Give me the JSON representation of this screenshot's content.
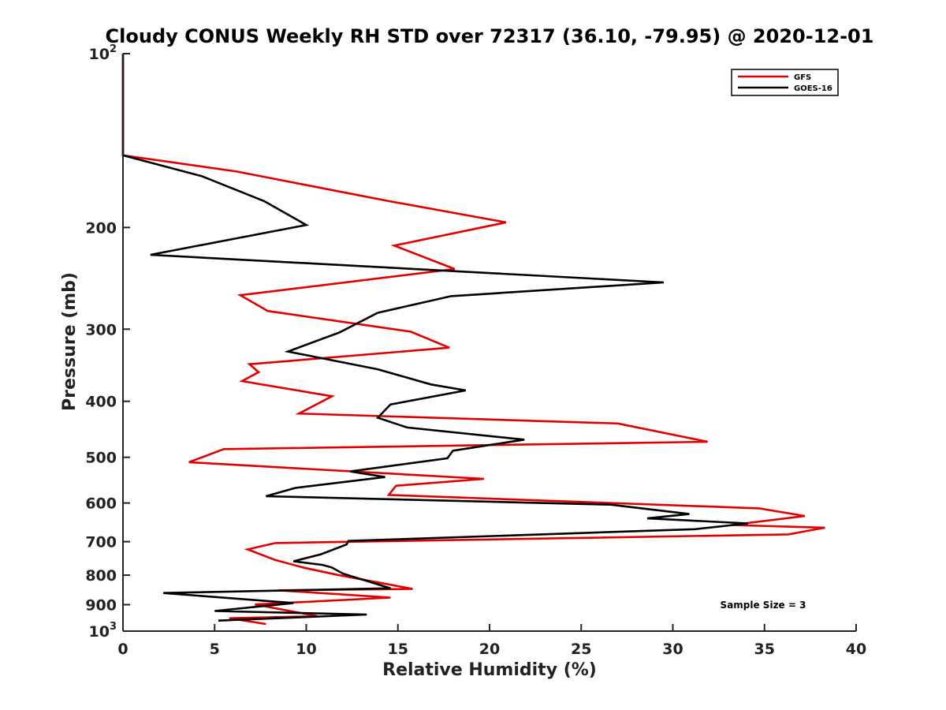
{
  "chart_data": {
    "type": "line",
    "title": "Cloudy CONUS Weekly RH STD over 72317 (36.10, -79.95) @ 2020-12-01",
    "xlabel": "Relative Humidity (%)",
    "ylabel": "Pressure (mb)",
    "xlim": [
      0,
      40
    ],
    "ylim": [
      100,
      1000
    ],
    "y_scale": "log",
    "y_reversed": true,
    "grid": false,
    "legend_position": "top-right",
    "x_ticks": [
      0,
      5,
      10,
      15,
      20,
      25,
      30,
      35,
      40
    ],
    "y_ticks": [
      {
        "value": 100,
        "base": "10",
        "exp": "2",
        "label": ""
      },
      {
        "value": 200,
        "label": "200"
      },
      {
        "value": 300,
        "label": "300"
      },
      {
        "value": 400,
        "label": "400"
      },
      {
        "value": 500,
        "label": "500"
      },
      {
        "value": 600,
        "label": "600"
      },
      {
        "value": 700,
        "label": "700"
      },
      {
        "value": 800,
        "label": "800"
      },
      {
        "value": 900,
        "label": "900"
      },
      {
        "value": 1000,
        "base": "10",
        "exp": "3",
        "label": ""
      }
    ],
    "annotation": "Sample Size = 3",
    "series": [
      {
        "name": "GFS",
        "color": "#e00000",
        "points": [
          [
            0,
            100
          ],
          [
            0,
            150
          ],
          [
            6.2,
            160
          ],
          [
            14.5,
            180
          ],
          [
            20.9,
            196
          ],
          [
            14.8,
            215
          ],
          [
            18.1,
            236
          ],
          [
            6.4,
            262
          ],
          [
            7.9,
            279
          ],
          [
            15.7,
            303
          ],
          [
            17.8,
            323
          ],
          [
            6.9,
            345
          ],
          [
            7.4,
            356
          ],
          [
            6.5,
            369
          ],
          [
            11.4,
            392
          ],
          [
            9.6,
            420
          ],
          [
            27.0,
            437
          ],
          [
            31.9,
            470
          ],
          [
            5.5,
            484
          ],
          [
            3.6,
            510
          ],
          [
            19.7,
            545
          ],
          [
            14.9,
            560
          ],
          [
            14.5,
            581
          ],
          [
            34.7,
            613
          ],
          [
            37.2,
            632
          ],
          [
            33.2,
            655
          ],
          [
            38.3,
            662
          ],
          [
            36.3,
            680
          ],
          [
            8.3,
            704
          ],
          [
            6.8,
            722
          ],
          [
            8.3,
            753
          ],
          [
            9.9,
            777
          ],
          [
            11.7,
            799
          ],
          [
            15.8,
            845
          ],
          [
            8.5,
            850
          ],
          [
            14.6,
            875
          ],
          [
            7.2,
            899
          ],
          [
            10.6,
            942
          ],
          [
            5.8,
            950
          ],
          [
            7.8,
            972
          ]
        ]
      },
      {
        "name": "GOES-16",
        "color": "#000000",
        "points": [
          [
            0,
            100
          ],
          [
            0,
            150
          ],
          [
            4.3,
            163
          ],
          [
            7.7,
            180
          ],
          [
            10.0,
            198
          ],
          [
            1.5,
            223
          ],
          [
            29.5,
            249
          ],
          [
            17.9,
            263
          ],
          [
            13.9,
            281
          ],
          [
            11.8,
            304
          ],
          [
            9.0,
            328
          ],
          [
            13.9,
            352
          ],
          [
            16.8,
            374
          ],
          [
            18.7,
            383
          ],
          [
            14.6,
            405
          ],
          [
            13.9,
            427
          ],
          [
            15.5,
            444
          ],
          [
            21.9,
            466
          ],
          [
            18.0,
            487
          ],
          [
            17.7,
            502
          ],
          [
            12.4,
            529
          ],
          [
            14.3,
            541
          ],
          [
            9.4,
            565
          ],
          [
            7.8,
            584
          ],
          [
            26.6,
            604
          ],
          [
            30.9,
            627
          ],
          [
            28.6,
            638
          ],
          [
            34.1,
            651
          ],
          [
            31.2,
            666
          ],
          [
            12.3,
            698
          ],
          [
            12.2,
            708
          ],
          [
            10.8,
            736
          ],
          [
            9.3,
            757
          ],
          [
            10.9,
            768
          ],
          [
            11.4,
            776
          ],
          [
            12.0,
            795
          ],
          [
            14.6,
            843
          ],
          [
            2.2,
            859
          ],
          [
            9.3,
            894
          ],
          [
            5.0,
            923
          ],
          [
            13.3,
            936
          ],
          [
            5.2,
            959
          ]
        ]
      }
    ]
  }
}
